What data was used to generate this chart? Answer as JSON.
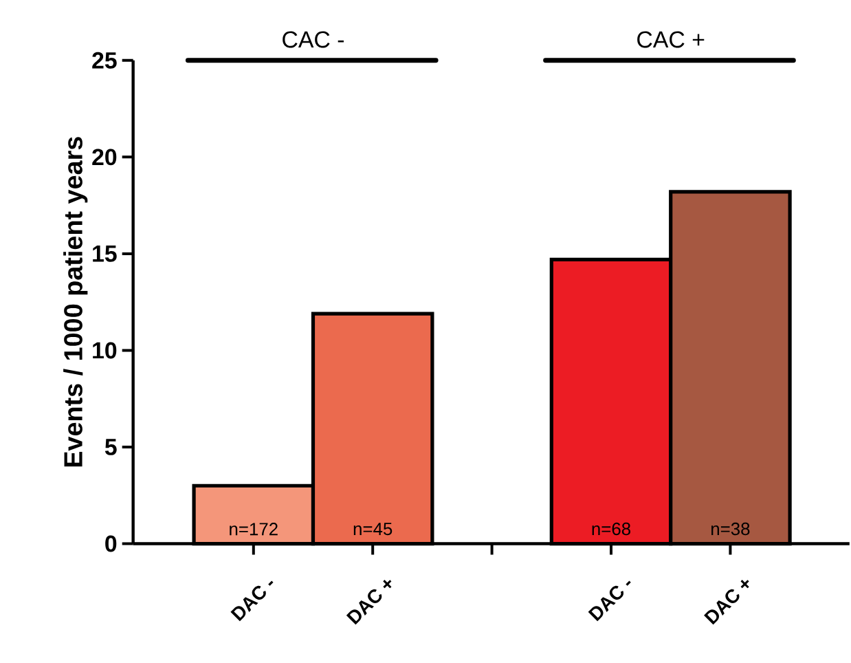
{
  "chart_data": {
    "type": "bar",
    "ylabel": "Events / 1000 patient years",
    "categories": [
      "DAC -",
      "DAC +",
      null,
      "DAC -",
      "DAC +"
    ],
    "values": [
      3.0,
      11.9,
      null,
      14.7,
      18.2
    ],
    "colors": [
      "#f4967a",
      "#eb6a4e",
      null,
      "#ec1c24",
      "#a65841"
    ],
    "ylim": [
      0,
      25
    ],
    "yticks": [
      0,
      5,
      10,
      15,
      20,
      25
    ],
    "annotations": [
      "CAC -",
      "CAC  +",
      "n=172",
      "n=45",
      "n=68",
      "n=38"
    ]
  }
}
